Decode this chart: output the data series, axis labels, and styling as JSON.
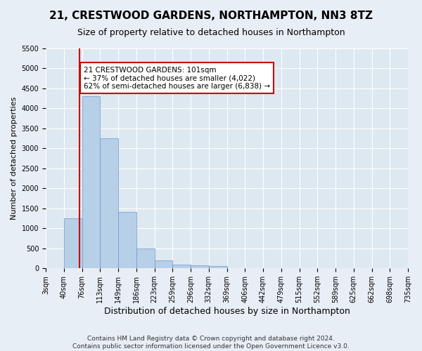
{
  "title": "21, CRESTWOOD GARDENS, NORTHAMPTON, NN3 8TZ",
  "subtitle": "Size of property relative to detached houses in Northampton",
  "xlabel": "Distribution of detached houses by size in Northampton",
  "ylabel": "Number of detached properties",
  "footer_line1": "Contains HM Land Registry data © Crown copyright and database right 2024.",
  "footer_line2": "Contains public sector information licensed under the Open Government Licence v3.0.",
  "bin_labels": [
    "3sqm",
    "40sqm",
    "76sqm",
    "113sqm",
    "149sqm",
    "186sqm",
    "223sqm",
    "259sqm",
    "296sqm",
    "332sqm",
    "369sqm",
    "406sqm",
    "442sqm",
    "479sqm",
    "515sqm",
    "552sqm",
    "589sqm",
    "625sqm",
    "662sqm",
    "698sqm",
    "735sqm"
  ],
  "bar_values": [
    0,
    1250,
    4300,
    3250,
    1400,
    490,
    200,
    100,
    80,
    55,
    0,
    0,
    0,
    0,
    0,
    0,
    0,
    0,
    0,
    0
  ],
  "bar_color": "#b8cfe8",
  "bar_edge_color": "#6699cc",
  "property_vline_pos": 1.85,
  "vline_color": "#cc0000",
  "annotation_text": "21 CRESTWOOD GARDENS: 101sqm\n← 37% of detached houses are smaller (4,022)\n62% of semi-detached houses are larger (6,838) →",
  "annotation_box_color": "#ffffff",
  "annotation_box_edge": "#cc0000",
  "ylim": [
    0,
    5500
  ],
  "yticks": [
    0,
    500,
    1000,
    1500,
    2000,
    2500,
    3000,
    3500,
    4000,
    4500,
    5000,
    5500
  ],
  "background_color": "#e8eef5",
  "plot_background": "#dde8f0",
  "grid_color": "#ffffff",
  "title_fontsize": 11,
  "subtitle_fontsize": 9,
  "xlabel_fontsize": 9,
  "ylabel_fontsize": 8,
  "tick_fontsize": 7,
  "annotation_fontsize": 7.5,
  "footer_fontsize": 6.5
}
